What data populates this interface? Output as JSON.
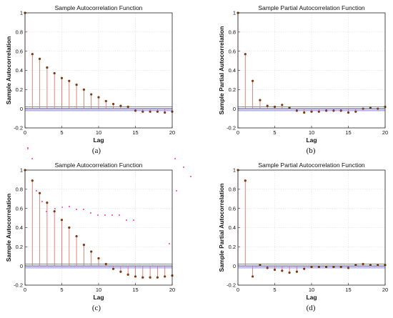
{
  "style": {
    "stem_color": "#e8736c",
    "marker_color": "#7b3a10",
    "zero_line_color": "#1a1a8c",
    "bound_line_color": "#5a5ab4"
  },
  "chart_data": [
    {
      "type": "stem",
      "title": "Sample Autocorrelation Function",
      "xlabel": "Lag",
      "ylabel": "Sample Autocorrelation",
      "caption": "(a)",
      "xlim": [
        0,
        20
      ],
      "ylim": [
        -0.2,
        1
      ],
      "xticks": [
        "0",
        "5",
        "10",
        "15",
        "20"
      ],
      "yticks": [
        "-0.2",
        "0",
        "0.2",
        "0.4",
        "0.6",
        "0.8",
        "1"
      ],
      "grid": true,
      "confidence_bounds": [
        -0.02,
        0.02
      ],
      "x": [
        0,
        1,
        2,
        3,
        4,
        5,
        6,
        7,
        8,
        9,
        10,
        11,
        12,
        13,
        14,
        15,
        16,
        17,
        18,
        19,
        20
      ],
      "values": [
        1,
        0.57,
        0.52,
        0.43,
        0.37,
        0.32,
        0.29,
        0.25,
        0.2,
        0.15,
        0.12,
        0.08,
        0.05,
        0.03,
        0.02,
        -0.02,
        -0.03,
        -0.03,
        -0.03,
        -0.04,
        -0.03
      ]
    },
    {
      "type": "stem",
      "title": "Sample Partial Autocorrelation Function",
      "xlabel": "Lag",
      "ylabel": "Sample Partial Autocorrelation",
      "caption": "(b)",
      "xlim": [
        0,
        20
      ],
      "ylim": [
        -0.2,
        1
      ],
      "xticks": [
        "0",
        "5",
        "10",
        "15",
        "20"
      ],
      "yticks": [
        "-0.2",
        "0",
        "0.2",
        "0.4",
        "0.6",
        "0.8",
        "1"
      ],
      "grid": true,
      "confidence_bounds": [
        -0.02,
        0.02
      ],
      "x": [
        0,
        1,
        2,
        3,
        4,
        5,
        6,
        7,
        8,
        9,
        10,
        11,
        12,
        13,
        14,
        15,
        16,
        17,
        18,
        19,
        20
      ],
      "values": [
        1,
        0.57,
        0.29,
        0.09,
        0.03,
        0.02,
        0.04,
        0.01,
        -0.02,
        -0.04,
        -0.03,
        -0.03,
        -0.02,
        -0.02,
        -0.02,
        -0.04,
        -0.03,
        0,
        0.01,
        0,
        0.02
      ]
    },
    {
      "type": "stem",
      "title": "Sample Autocorrelation Function",
      "xlabel": "Lag",
      "ylabel": "Sample Autocorrelation",
      "caption": "(c)",
      "xlim": [
        0,
        20
      ],
      "ylim": [
        -0.2,
        1
      ],
      "xticks": [
        "0",
        "5",
        "10",
        "15",
        "20"
      ],
      "yticks": [
        "-0.2",
        "0",
        "0.2",
        "0.4",
        "0.6",
        "0.8",
        "1"
      ],
      "grid": true,
      "confidence_bounds": [
        -0.02,
        0.02
      ],
      "x": [
        0,
        1,
        2,
        3,
        4,
        5,
        6,
        7,
        8,
        9,
        10,
        11,
        12,
        13,
        14,
        15,
        16,
        17,
        18,
        19,
        20
      ],
      "values": [
        1,
        0.89,
        0.76,
        0.66,
        0.57,
        0.48,
        0.4,
        0.31,
        0.22,
        0.15,
        0.08,
        0.02,
        -0.03,
        -0.06,
        -0.09,
        -0.11,
        -0.12,
        -0.12,
        -0.12,
        -0.11,
        -0.1
      ]
    },
    {
      "type": "stem",
      "title": "Sample Partial Autocorrelation Function",
      "xlabel": "Lag",
      "ylabel": "Sample Partial Autocorrelation",
      "caption": "(d)",
      "xlim": [
        0,
        20
      ],
      "ylim": [
        -0.2,
        1
      ],
      "xticks": [
        "0",
        "5",
        "10",
        "15",
        "20"
      ],
      "yticks": [
        "-0.2",
        "0",
        "0.2",
        "0.4",
        "0.6",
        "0.8",
        "1"
      ],
      "grid": true,
      "confidence_bounds": [
        -0.02,
        0.02
      ],
      "x": [
        0,
        1,
        2,
        3,
        4,
        5,
        6,
        7,
        8,
        9,
        10,
        11,
        12,
        13,
        14,
        15,
        16,
        17,
        18,
        19,
        20
      ],
      "values": [
        1,
        0.89,
        -0.11,
        0.01,
        -0.02,
        -0.04,
        -0.05,
        -0.07,
        -0.06,
        -0.03,
        -0.01,
        -0.01,
        -0.01,
        -0.01,
        -0.01,
        -0.02,
        0.01,
        0.02,
        0.01,
        0.01,
        0.01
      ]
    }
  ]
}
